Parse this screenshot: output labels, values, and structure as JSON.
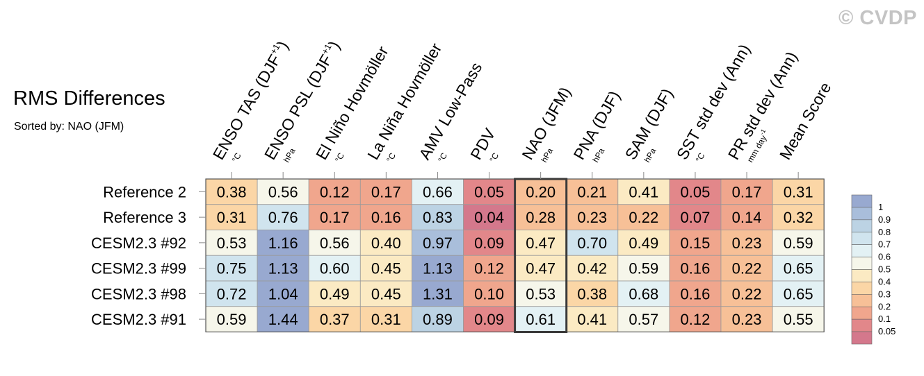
{
  "watermark": "© CVDP",
  "chart_data": {
    "type": "heatmap",
    "title": "RMS Differences",
    "subtitle": "Sorted by: NAO (JFM)",
    "columns": [
      {
        "label": "ENSO TAS (DJF",
        "sup": "+1",
        "tail": ")",
        "unit": "°C"
      },
      {
        "label": "ENSO PSL (DJF",
        "sup": "+1",
        "tail": ")",
        "unit": "hPa"
      },
      {
        "label": "El Niño Hovmöller",
        "sup": "",
        "tail": "",
        "unit": "°C"
      },
      {
        "label": "La Niña Hovmöller",
        "sup": "",
        "tail": "",
        "unit": "°C"
      },
      {
        "label": "AMV Low-Pass",
        "sup": "",
        "tail": "",
        "unit": "°C"
      },
      {
        "label": "PDV",
        "sup": "",
        "tail": "",
        "unit": "°C"
      },
      {
        "label": "NAO (JFM)",
        "sup": "",
        "tail": "",
        "unit": "hPa"
      },
      {
        "label": "PNA (DJF)",
        "sup": "",
        "tail": "",
        "unit": "hPa"
      },
      {
        "label": "SAM (DJF)",
        "sup": "",
        "tail": "",
        "unit": "hPa"
      },
      {
        "label": "SST std dev (Ann)",
        "sup": "",
        "tail": "",
        "unit": "°C"
      },
      {
        "label": "PR std dev (Ann)",
        "sup": "",
        "tail": "",
        "unit": "mm day",
        "unit_sup": "-1"
      },
      {
        "label": "Mean Score",
        "sup": "",
        "tail": "",
        "unit": ""
      }
    ],
    "rows": [
      "Reference 2",
      "Reference 3",
      "CESM2.3 #92",
      "CESM2.3 #99",
      "CESM2.3 #98",
      "CESM2.3 #91"
    ],
    "values": [
      [
        "0.38",
        "0.56",
        "0.12",
        "0.17",
        "0.66",
        "0.05",
        "0.20",
        "0.21",
        "0.41",
        "0.05",
        "0.17",
        "0.31"
      ],
      [
        "0.31",
        "0.76",
        "0.17",
        "0.16",
        "0.83",
        "0.04",
        "0.28",
        "0.23",
        "0.22",
        "0.07",
        "0.14",
        "0.32"
      ],
      [
        "0.53",
        "1.16",
        "0.56",
        "0.40",
        "0.97",
        "0.09",
        "0.47",
        "0.70",
        "0.49",
        "0.15",
        "0.23",
        "0.59"
      ],
      [
        "0.75",
        "1.13",
        "0.60",
        "0.45",
        "1.13",
        "0.12",
        "0.47",
        "0.42",
        "0.59",
        "0.16",
        "0.22",
        "0.65"
      ],
      [
        "0.72",
        "1.04",
        "0.49",
        "0.45",
        "1.31",
        "0.10",
        "0.53",
        "0.38",
        "0.68",
        "0.16",
        "0.22",
        "0.65"
      ],
      [
        "0.59",
        "1.44",
        "0.37",
        "0.31",
        "0.89",
        "0.09",
        "0.61",
        "0.41",
        "0.57",
        "0.12",
        "0.23",
        "0.55"
      ]
    ],
    "highlighted_column": "NAO (JFM)",
    "colorbar": {
      "ticks": [
        "1",
        "0.9",
        "0.8",
        "0.7",
        "0.6",
        "0.5",
        "0.4",
        "0.3",
        "0.2",
        "0.1",
        "0.05"
      ],
      "bins": [
        {
          "min": 1.0,
          "max": null,
          "color": "#98a9d0"
        },
        {
          "min": 0.9,
          "max": 1.0,
          "color": "#a9bedb"
        },
        {
          "min": 0.8,
          "max": 0.9,
          "color": "#bcd3e4"
        },
        {
          "min": 0.7,
          "max": 0.8,
          "color": "#d0e4ee"
        },
        {
          "min": 0.6,
          "max": 0.7,
          "color": "#e3f1f4"
        },
        {
          "min": 0.5,
          "max": 0.6,
          "color": "#f6f6ea"
        },
        {
          "min": 0.4,
          "max": 0.5,
          "color": "#fbeac3"
        },
        {
          "min": 0.3,
          "max": 0.4,
          "color": "#fbd6a6"
        },
        {
          "min": 0.2,
          "max": 0.3,
          "color": "#f7c097"
        },
        {
          "min": 0.1,
          "max": 0.2,
          "color": "#f0a68d"
        },
        {
          "min": 0.05,
          "max": 0.1,
          "color": "#e2878a"
        },
        {
          "min": null,
          "max": 0.05,
          "color": "#d4788c"
        }
      ]
    }
  }
}
